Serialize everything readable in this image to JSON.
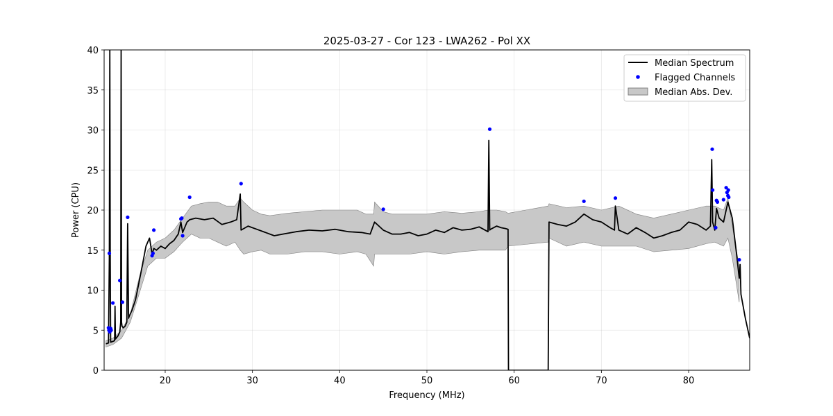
{
  "chart_data": {
    "type": "line",
    "title": "2025-03-27 - Cor 123 - LWA262 - Pol XX",
    "xlabel": "Frequency (MHz)",
    "ylabel": "Power (CPU)",
    "xlim": [
      13.0,
      87.0
    ],
    "ylim": [
      0,
      40
    ],
    "xticks": [
      20,
      30,
      40,
      50,
      60,
      70,
      80
    ],
    "yticks": [
      0,
      5,
      10,
      15,
      20,
      25,
      30,
      35,
      40
    ],
    "grid": true,
    "legend_position": "top-right",
    "legend": [
      "Median Spectrum",
      "Flagged Channels",
      "Median Abs. Dev."
    ],
    "colors": {
      "median": "#000000",
      "flagged": "#0000ff",
      "mad_fill": "#c8c8c8",
      "mad_edge": "#7f7f7f"
    },
    "series": [
      {
        "name": "Median Spectrum",
        "x": [
          13.2,
          13.5,
          13.6,
          13.65,
          13.7,
          13.75,
          14.0,
          14.2,
          14.25,
          14.3,
          14.6,
          14.8,
          14.9,
          14.95,
          15.0,
          15.05,
          15.2,
          15.4,
          15.6,
          15.7,
          15.8,
          15.9,
          16.2,
          16.6,
          17.0,
          17.4,
          17.8,
          18.2,
          18.5,
          18.7,
          19.0,
          19.5,
          20.0,
          20.5,
          21.0,
          21.5,
          21.8,
          22.0,
          22.5,
          22.8,
          23.5,
          24.5,
          25.5,
          26.5,
          27.5,
          28.2,
          28.6,
          28.7,
          29.5,
          30.5,
          31.5,
          32.5,
          33.5,
          35.0,
          36.5,
          38.0,
          39.5,
          41.0,
          42.5,
          43.5,
          44.0,
          45.0,
          46.0,
          47.0,
          48.0,
          49.0,
          50.0,
          51.0,
          52.0,
          53.0,
          54.0,
          55.0,
          56.0,
          57.0,
          57.1,
          57.2,
          57.3,
          58.0,
          58.5,
          59.0,
          59.3,
          59.35,
          63.9,
          64.0,
          65.0,
          66.0,
          67.0,
          68.0,
          69.0,
          70.0,
          71.0,
          71.5,
          71.6,
          72.0,
          73.0,
          74.0,
          75.0,
          76.0,
          77.0,
          78.0,
          79.0,
          80.0,
          81.0,
          82.0,
          82.5,
          82.65,
          82.75,
          83.0,
          83.2,
          83.5,
          84.0,
          84.5,
          85.0,
          85.5,
          85.8,
          85.9,
          86.0,
          86.5,
          87.0
        ],
        "y": [
          3.3,
          3.4,
          14.0,
          40.0,
          14.0,
          3.5,
          3.6,
          3.7,
          8.0,
          3.9,
          4.3,
          4.8,
          6.0,
          40.0,
          6.0,
          5.5,
          5.3,
          5.5,
          6.0,
          18.3,
          6.5,
          6.8,
          7.5,
          8.8,
          11.0,
          13.2,
          15.5,
          16.5,
          14.5,
          15.2,
          15.0,
          15.5,
          15.2,
          15.8,
          16.2,
          17.0,
          18.5,
          17.2,
          18.5,
          18.8,
          19.0,
          18.8,
          19.0,
          18.2,
          18.5,
          18.8,
          22.0,
          17.5,
          18.0,
          17.6,
          17.2,
          16.8,
          17.0,
          17.3,
          17.5,
          17.4,
          17.6,
          17.3,
          17.2,
          17.0,
          18.5,
          17.5,
          17.0,
          17.0,
          17.2,
          16.8,
          17.0,
          17.5,
          17.2,
          17.8,
          17.5,
          17.6,
          17.9,
          17.3,
          28.7,
          17.5,
          17.6,
          18.0,
          17.8,
          17.7,
          17.6,
          0.0,
          0.0,
          18.5,
          18.2,
          18.0,
          18.5,
          19.5,
          18.8,
          18.5,
          17.8,
          17.5,
          20.5,
          17.5,
          17.0,
          17.8,
          17.2,
          16.5,
          16.8,
          17.2,
          17.5,
          18.5,
          18.2,
          17.5,
          18.0,
          26.3,
          18.5,
          17.5,
          20.2,
          19.0,
          18.5,
          21.0,
          19.0,
          14.5,
          11.5,
          13.2,
          9.5,
          6.5,
          4.0
        ]
      },
      {
        "name": "Median Abs. Dev.",
        "x": [
          13.2,
          14.0,
          15.0,
          16.0,
          17.0,
          18.0,
          19.0,
          20.0,
          21.0,
          22.0,
          23.0,
          24.0,
          25.0,
          26.0,
          27.0,
          28.0,
          28.6,
          29.0,
          30.0,
          31.0,
          32.0,
          34.0,
          36.0,
          38.0,
          40.0,
          42.0,
          43.0,
          43.9,
          44.0,
          45.0,
          46.0,
          48.0,
          50.0,
          52.0,
          54.0,
          56.0,
          57.0,
          58.0,
          59.0,
          59.3,
          63.9,
          64.0,
          66.0,
          68.0,
          70.0,
          72.0,
          74.0,
          76.0,
          78.0,
          80.0,
          82.0,
          83.0,
          84.0,
          84.5,
          85.0,
          85.8
        ],
        "upper": [
          3.7,
          4.0,
          5.0,
          7.0,
          11.5,
          15.0,
          16.0,
          16.5,
          17.5,
          19.0,
          20.5,
          20.8,
          21.0,
          21.0,
          20.5,
          20.5,
          21.5,
          21.0,
          20.0,
          19.5,
          19.3,
          19.6,
          19.8,
          20.0,
          20.0,
          20.0,
          19.5,
          19.5,
          21.0,
          19.8,
          19.5,
          19.5,
          19.5,
          19.8,
          19.6,
          19.8,
          20.0,
          20.0,
          19.8,
          19.6,
          20.5,
          20.8,
          20.3,
          20.5,
          20.0,
          20.5,
          19.5,
          19.0,
          19.5,
          20.0,
          20.5,
          20.5,
          20.0,
          21.5,
          18.0,
          13.0
        ],
        "lower": [
          2.9,
          3.2,
          4.0,
          6.0,
          9.5,
          13.0,
          14.0,
          14.0,
          14.8,
          16.0,
          17.0,
          16.5,
          16.5,
          16.0,
          15.5,
          16.0,
          15.0,
          14.5,
          14.8,
          15.0,
          14.5,
          14.5,
          14.8,
          14.8,
          14.5,
          14.8,
          14.5,
          13.0,
          14.5,
          14.5,
          14.5,
          14.5,
          14.8,
          14.5,
          14.8,
          15.0,
          15.0,
          15.0,
          15.0,
          15.5,
          16.0,
          16.5,
          15.5,
          16.0,
          15.5,
          15.5,
          15.5,
          14.8,
          15.0,
          15.2,
          15.8,
          16.0,
          15.5,
          16.5,
          14.0,
          8.5
        ]
      }
    ],
    "flagged_channels": {
      "name": "Flagged Channels",
      "x": [
        13.5,
        13.55,
        13.6,
        13.65,
        13.7,
        13.75,
        13.8,
        14.0,
        14.8,
        15.1,
        15.7,
        18.5,
        18.6,
        18.7,
        21.8,
        21.9,
        22.0,
        22.8,
        28.7,
        45.0,
        57.2,
        68.0,
        71.6,
        82.7,
        82.75,
        83.1,
        83.2,
        83.3,
        84.0,
        84.3,
        84.4,
        84.5,
        84.55,
        84.6,
        85.8
      ],
      "y": [
        5.3,
        5.0,
        14.6,
        4.8,
        5.0,
        5.2,
        5.0,
        8.4,
        11.2,
        8.5,
        19.1,
        14.3,
        14.6,
        17.5,
        18.9,
        19.0,
        16.8,
        21.6,
        23.3,
        20.1,
        30.1,
        21.1,
        21.5,
        27.6,
        22.5,
        17.8,
        21.2,
        21.0,
        21.3,
        22.8,
        22.2,
        21.8,
        22.5,
        21.6,
        13.8
      ]
    }
  }
}
